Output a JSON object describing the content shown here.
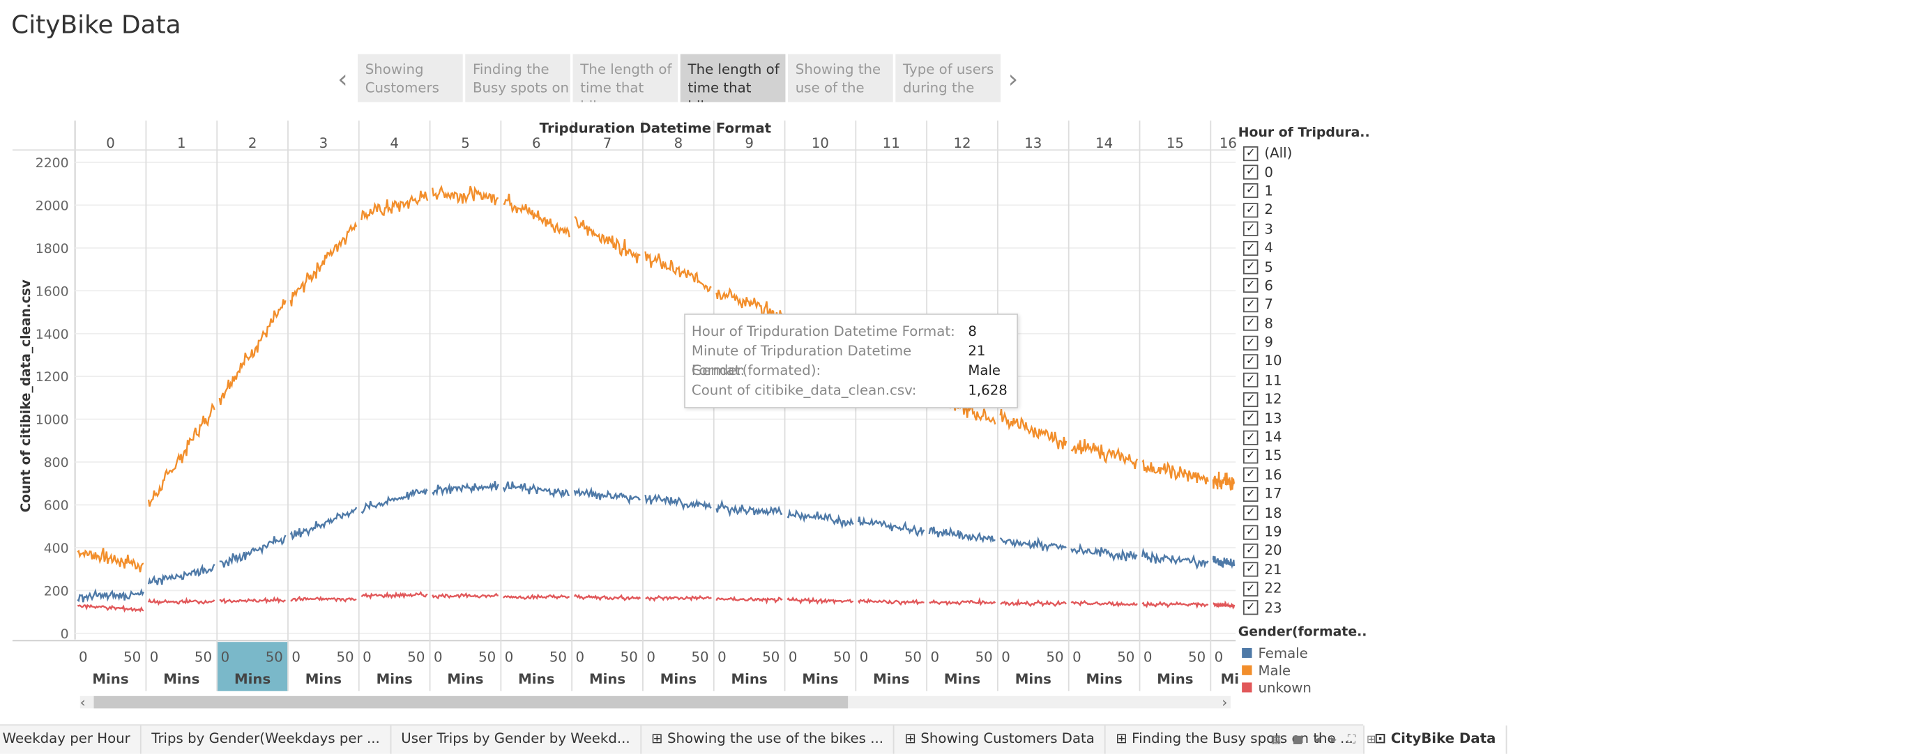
{
  "page_title": "CityBike Data",
  "story": {
    "cards": [
      "Showing Customers",
      "Finding the Busy spots on",
      "The length of time that bikes",
      "The length of time that bikes",
      "Showing the use of the",
      "Type of users during the"
    ],
    "active_index": 3,
    "prev_glyph": "‹",
    "next_glyph": "›"
  },
  "chart_data": {
    "type": "line",
    "title": "Tripduration Datetime Format",
    "ylabel": "Count of citibike_data_clean.csv",
    "ylim": [
      0,
      2200
    ],
    "yticks": [
      0,
      200,
      400,
      600,
      800,
      1000,
      1200,
      1400,
      1600,
      1800,
      2000,
      2200
    ],
    "hours": [
      "0",
      "1",
      "2",
      "3",
      "4",
      "5",
      "6",
      "7",
      "8",
      "9",
      "10",
      "11",
      "12",
      "13",
      "14",
      "15",
      "16"
    ],
    "minute_ticks": [
      "0",
      "50"
    ],
    "minute_axis_label": "Mins",
    "last_panel_label": "Mi..",
    "highlighted_hour": "2",
    "series": [
      {
        "name": "Male",
        "color": "#f28e2b",
        "hour_start": [
          380,
          600,
          1100,
          1560,
          1950,
          2060,
          2030,
          1920,
          1760,
          1600,
          1440,
          1270,
          1120,
          1010,
          880,
          780,
          720
        ],
        "hour_end": [
          320,
          1060,
          1540,
          1920,
          2040,
          2040,
          1870,
          1760,
          1620,
          1480,
          1310,
          1150,
          990,
          880,
          800,
          720,
          700
        ]
      },
      {
        "name": "Female",
        "color": "#4e79a7",
        "hour_start": [
          170,
          240,
          320,
          450,
          580,
          670,
          690,
          660,
          630,
          590,
          560,
          520,
          480,
          430,
          390,
          360,
          340
        ],
        "hour_end": [
          180,
          310,
          450,
          580,
          670,
          690,
          650,
          630,
          590,
          560,
          520,
          480,
          440,
          400,
          360,
          330,
          320
        ]
      },
      {
        "name": "unkown",
        "color": "#e15759",
        "hour_start": [
          130,
          145,
          150,
          160,
          175,
          175,
          170,
          170,
          165,
          160,
          155,
          150,
          145,
          140,
          140,
          135,
          135
        ],
        "hour_end": [
          110,
          150,
          155,
          160,
          180,
          175,
          170,
          165,
          165,
          155,
          150,
          145,
          145,
          140,
          135,
          135,
          130
        ]
      }
    ],
    "tooltip": [
      {
        "k": "Hour of Tripduration Datetime Format:",
        "v": "8"
      },
      {
        "k": "Minute of Tripduration Datetime Format:",
        "v": "21"
      },
      {
        "k": "Gender(formated):",
        "v": "Male"
      },
      {
        "k": "Count of citibike_data_clean.csv:",
        "v": "1,628"
      }
    ]
  },
  "filter": {
    "title": "Hour of Tripdura..",
    "items": [
      "(All)",
      "0",
      "1",
      "2",
      "3",
      "4",
      "5",
      "6",
      "7",
      "8",
      "9",
      "10",
      "11",
      "12",
      "13",
      "14",
      "15",
      "16",
      "17",
      "18",
      "19",
      "20",
      "21",
      "22",
      "23"
    ],
    "check_glyph": "✓"
  },
  "gender_legend": {
    "title": "Gender(formate..",
    "items": [
      {
        "label": "Female",
        "color": "#4e79a7"
      },
      {
        "label": "Male",
        "color": "#f28e2b"
      },
      {
        "label": "unkown",
        "color": "#e15759"
      }
    ]
  },
  "scrollbar": {
    "left_glyph": "‹",
    "right_glyph": "›"
  },
  "tabs": [
    {
      "label": "Weekday per Hour",
      "active": false
    },
    {
      "label": "Trips by Gender(Weekdays per ...",
      "active": false
    },
    {
      "label": "User Trips by Gender by Weekd...",
      "active": false
    },
    {
      "label": "⊞ Showing the use of the bikes ...",
      "active": false
    },
    {
      "label": "⊞ Showing  Customers Data",
      "active": false
    },
    {
      "label": "⊞ Finding the Busy spots on the ...",
      "active": false
    },
    {
      "label": "⊡ CityBike Data",
      "active": true
    }
  ],
  "tab_controls": "▦ ■ ◂ ▸ ⛶ ⊞"
}
